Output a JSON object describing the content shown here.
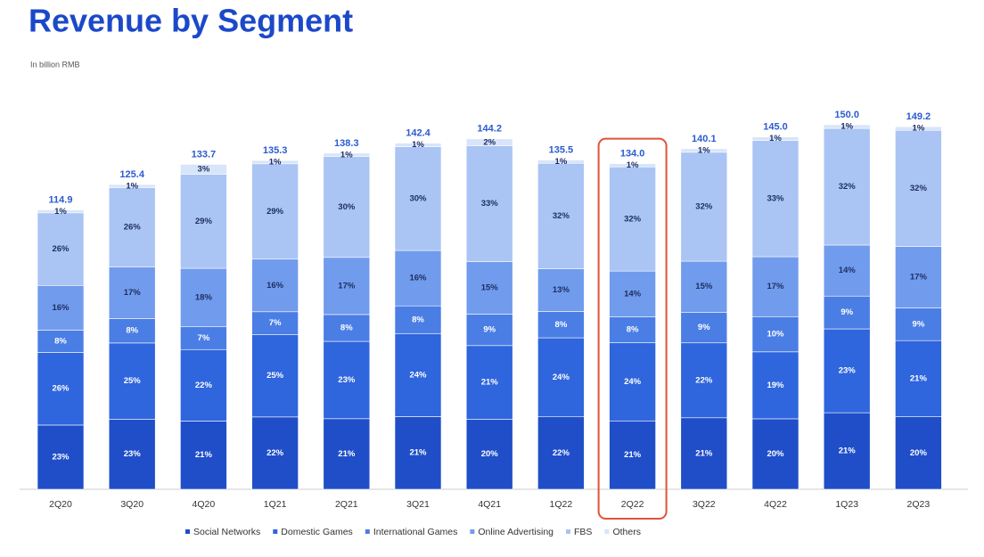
{
  "chart_data": {
    "type": "stacked_bar",
    "title": "Revenue by Segment",
    "subtitle": "In billion RMB",
    "categories": [
      "2Q20",
      "3Q20",
      "4Q20",
      "1Q21",
      "2Q21",
      "3Q21",
      "4Q21",
      "1Q22",
      "2Q22",
      "3Q22",
      "4Q22",
      "1Q23",
      "2Q23"
    ],
    "totals": {
      "values": [
        114.9,
        125.4,
        133.7,
        135.3,
        138.3,
        142.4,
        144.2,
        135.5,
        134.0,
        140.1,
        145.0,
        150.0,
        149.2
      ],
      "value_labels": [
        "114.9",
        "125.4",
        "133.7",
        "135.3",
        "138.3",
        "142.4",
        "144.2",
        "135.5",
        "134.0",
        "140.1",
        "145.0",
        "150.0",
        "149.2"
      ]
    },
    "series": [
      {
        "name": "Social Networks",
        "color": "#1f4ec8",
        "values": [
          23,
          23,
          21,
          22,
          21,
          21,
          20,
          22,
          21,
          21,
          20,
          21,
          20
        ],
        "value_labels": [
          "23%",
          "23%",
          "21%",
          "22%",
          "21%",
          "21%",
          "20%",
          "22%",
          "21%",
          "21%",
          "20%",
          "21%",
          "20%"
        ]
      },
      {
        "name": "Domestic Games",
        "color": "#2f65dd",
        "values": [
          26,
          25,
          22,
          25,
          23,
          24,
          21,
          24,
          24,
          22,
          19,
          23,
          21
        ],
        "value_labels": [
          "26%",
          "25%",
          "22%",
          "25%",
          "23%",
          "24%",
          "21%",
          "24%",
          "24%",
          "22%",
          "19%",
          "23%",
          "21%"
        ]
      },
      {
        "name": "International Games",
        "color": "#4a7ee5",
        "values": [
          8,
          8,
          7,
          7,
          8,
          8,
          9,
          8,
          8,
          9,
          10,
          9,
          9
        ],
        "value_labels": [
          "8%",
          "8%",
          "7%",
          "7%",
          "8%",
          "8%",
          "9%",
          "8%",
          "8%",
          "9%",
          "10%",
          "9%",
          "9%"
        ]
      },
      {
        "name": "Online Advertising",
        "color": "#719bec",
        "values": [
          16,
          17,
          18,
          16,
          17,
          16,
          15,
          13,
          14,
          15,
          17,
          14,
          17
        ],
        "value_labels": [
          "16%",
          "17%",
          "18%",
          "16%",
          "17%",
          "16%",
          "15%",
          "13%",
          "14%",
          "15%",
          "17%",
          "14%",
          "17%"
        ]
      },
      {
        "name": "FBS",
        "color": "#aac4f4",
        "values": [
          26,
          26,
          29,
          29,
          30,
          30,
          33,
          32,
          32,
          32,
          33,
          32,
          32
        ],
        "value_labels": [
          "26%",
          "26%",
          "29%",
          "29%",
          "30%",
          "30%",
          "33%",
          "32%",
          "32%",
          "32%",
          "33%",
          "32%",
          "32%"
        ]
      },
      {
        "name": "Others",
        "color": "#d8e4f9",
        "values": [
          1,
          1,
          3,
          1,
          1,
          1,
          2,
          1,
          1,
          1,
          1,
          1,
          1
        ],
        "value_labels": [
          "1%",
          "1%",
          "3%",
          "1%",
          "1%",
          "1%",
          "2%",
          "1%",
          "1%",
          "1%",
          "1%",
          "1%",
          "1%"
        ]
      }
    ],
    "highlight": "2Q22",
    "highlight_color": "#e0533a",
    "legend": "bottom"
  }
}
